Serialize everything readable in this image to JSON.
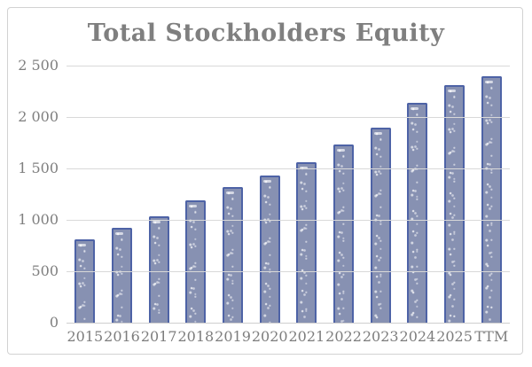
{
  "chart_data": {
    "type": "bar",
    "title": "Total Stockholders Equity",
    "categories": [
      "2015",
      "2016",
      "2017",
      "2018",
      "2019",
      "2020",
      "2021",
      "2022",
      "2023",
      "2024",
      "2025",
      "TTM"
    ],
    "values": [
      790,
      905,
      1015,
      1170,
      1300,
      1415,
      1545,
      1715,
      1880,
      2120,
      2290,
      2380
    ],
    "xlabel": "",
    "ylabel": "",
    "ylim": [
      0,
      2500
    ],
    "ytick_values": [
      0,
      500,
      1000,
      1500,
      2000,
      2500
    ],
    "ytick_labels": [
      "0",
      "500",
      "1 000",
      "1 500",
      "2 000",
      "2 500"
    ],
    "grid": true,
    "legend": false,
    "colors": {
      "bar_fill": "#8791b2",
      "bar_border": "#4e63a6",
      "title_text": "#7f7f7f",
      "tick_text": "#7f7f7f",
      "gridline": "#d9d9d9",
      "card_border": "#d2d2d2",
      "background": "#ffffff"
    }
  }
}
